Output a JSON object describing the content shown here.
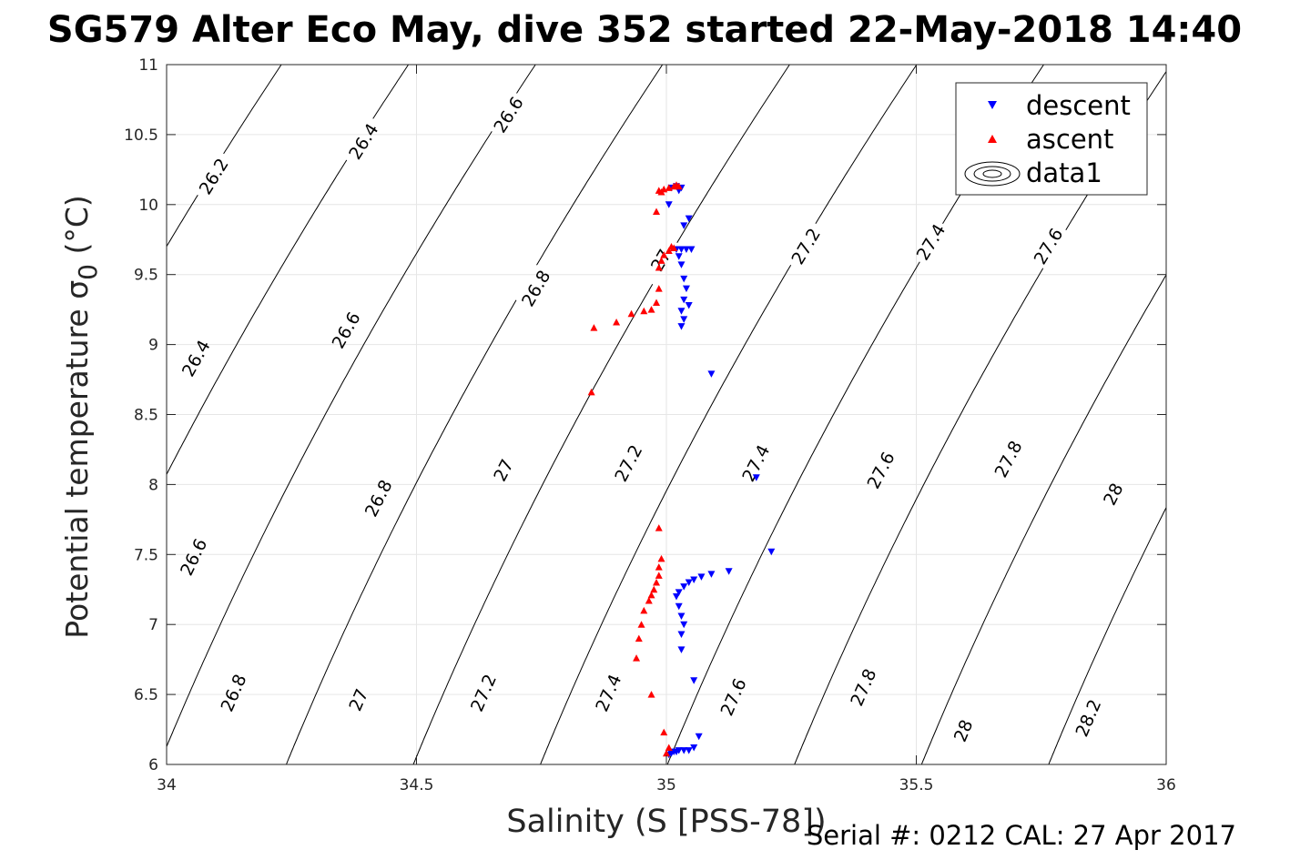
{
  "chart_data": {
    "type": "scatter",
    "title": "SG579 Alter Eco May, dive 352 started 22-May-2018 14:40",
    "xlabel": "Salinity (S [PSS-78])",
    "ylabel": "Potential temperature σ₀ (°C)",
    "ylabel_main": "Potential temperature σ",
    "ylabel_sub": "0",
    "ylabel_unit": " (°C)",
    "footer": "Serial #: 0212  CAL: 27 Apr 2017",
    "xlim": [
      34,
      36
    ],
    "ylim": [
      6,
      11
    ],
    "x_ticks": [
      34,
      34.5,
      35,
      35.5,
      36
    ],
    "x_tick_labels": [
      "34",
      "34.5",
      "35",
      "35.5",
      "36"
    ],
    "y_ticks": [
      6,
      6.5,
      7,
      7.5,
      8,
      8.5,
      9,
      9.5,
      10,
      10.5,
      11
    ],
    "y_tick_labels": [
      "6",
      "6.5",
      "7",
      "7.5",
      "8",
      "8.5",
      "9",
      "9.5",
      "10",
      "10.5",
      "11"
    ],
    "grid": true,
    "legend_position": "top-right",
    "series": [
      {
        "name": "descent",
        "marker": "triangle-down",
        "color": "#0000ff",
        "points": [
          [
            35.01,
            10.12
          ],
          [
            35.02,
            10.13
          ],
          [
            35.025,
            10.1
          ],
          [
            35.03,
            10.12
          ],
          [
            35.005,
            10.0
          ],
          [
            35.035,
            9.85
          ],
          [
            35.045,
            9.9
          ],
          [
            35.02,
            9.68
          ],
          [
            35.03,
            9.68
          ],
          [
            35.04,
            9.68
          ],
          [
            35.05,
            9.68
          ],
          [
            35.025,
            9.63
          ],
          [
            35.03,
            9.57
          ],
          [
            35.035,
            9.47
          ],
          [
            35.04,
            9.4
          ],
          [
            35.035,
            9.32
          ],
          [
            35.045,
            9.28
          ],
          [
            35.03,
            9.24
          ],
          [
            35.035,
            9.18
          ],
          [
            35.03,
            9.13
          ],
          [
            35.09,
            8.79
          ],
          [
            35.18,
            8.05
          ],
          [
            35.21,
            7.52
          ],
          [
            35.125,
            7.38
          ],
          [
            35.09,
            7.36
          ],
          [
            35.07,
            7.34
          ],
          [
            35.055,
            7.32
          ],
          [
            35.045,
            7.3
          ],
          [
            35.035,
            7.27
          ],
          [
            35.025,
            7.23
          ],
          [
            35.02,
            7.2
          ],
          [
            35.025,
            7.13
          ],
          [
            35.03,
            7.06
          ],
          [
            35.035,
            7.0
          ],
          [
            35.03,
            6.93
          ],
          [
            35.03,
            6.82
          ],
          [
            35.055,
            6.6
          ],
          [
            35.065,
            6.2
          ],
          [
            35.055,
            6.12
          ],
          [
            35.025,
            6.1
          ],
          [
            35.035,
            6.1
          ],
          [
            35.045,
            6.1
          ],
          [
            35.015,
            6.09
          ],
          [
            35.02,
            6.09
          ],
          [
            35.01,
            6.08
          ],
          [
            35.005,
            6.07
          ]
        ]
      },
      {
        "name": "ascent",
        "marker": "triangle-up",
        "color": "#ff0000",
        "points": [
          [
            34.985,
            10.1
          ],
          [
            34.995,
            10.11
          ],
          [
            35.005,
            10.12
          ],
          [
            35.015,
            10.13
          ],
          [
            35.02,
            10.14
          ],
          [
            35.025,
            10.13
          ],
          [
            34.99,
            10.09
          ],
          [
            34.98,
            9.95
          ],
          [
            35.01,
            9.7
          ],
          [
            35.015,
            9.69
          ],
          [
            35.005,
            9.67
          ],
          [
            34.995,
            9.64
          ],
          [
            34.99,
            9.6
          ],
          [
            34.985,
            9.55
          ],
          [
            34.985,
            9.4
          ],
          [
            34.98,
            9.3
          ],
          [
            34.97,
            9.25
          ],
          [
            34.955,
            9.24
          ],
          [
            34.93,
            9.22
          ],
          [
            34.9,
            9.16
          ],
          [
            34.855,
            9.12
          ],
          [
            34.85,
            8.66
          ],
          [
            34.985,
            7.69
          ],
          [
            34.99,
            7.47
          ],
          [
            34.985,
            7.41
          ],
          [
            34.985,
            7.35
          ],
          [
            34.98,
            7.3
          ],
          [
            34.975,
            7.25
          ],
          [
            34.97,
            7.21
          ],
          [
            34.965,
            7.17
          ],
          [
            34.955,
            7.1
          ],
          [
            34.95,
            7.0
          ],
          [
            34.945,
            6.9
          ],
          [
            34.94,
            6.76
          ],
          [
            34.97,
            6.5
          ],
          [
            34.995,
            6.23
          ],
          [
            35.005,
            6.12
          ],
          [
            35.0,
            6.08
          ]
        ]
      },
      {
        "name": "data1",
        "marker": "contour",
        "color": "#000000",
        "contour_levels": [
          26.2,
          26.4,
          26.6,
          26.8,
          27,
          27.2,
          27.4,
          27.6,
          27.8,
          28,
          28.2
        ],
        "contour_labels": [
          {
            "text": "26.2",
            "x": 34.095,
            "y": 10.2
          },
          {
            "text": "26.4",
            "x": 34.395,
            "y": 10.45
          },
          {
            "text": "26.6",
            "x": 34.685,
            "y": 10.64
          },
          {
            "text": "26.4",
            "x": 34.06,
            "y": 8.9
          },
          {
            "text": "26.6",
            "x": 34.36,
            "y": 9.1
          },
          {
            "text": "26.8",
            "x": 34.74,
            "y": 9.4
          },
          {
            "text": "27",
            "x": 34.99,
            "y": 9.6
          },
          {
            "text": "27.2",
            "x": 35.28,
            "y": 9.7
          },
          {
            "text": "27.4",
            "x": 35.53,
            "y": 9.73
          },
          {
            "text": "27.6",
            "x": 35.765,
            "y": 9.7
          },
          {
            "text": "26.6",
            "x": 34.055,
            "y": 7.48
          },
          {
            "text": "26.8",
            "x": 34.425,
            "y": 7.9
          },
          {
            "text": "27",
            "x": 34.675,
            "y": 8.1
          },
          {
            "text": "27.2",
            "x": 34.925,
            "y": 8.15
          },
          {
            "text": "27.4",
            "x": 35.18,
            "y": 8.15
          },
          {
            "text": "27.6",
            "x": 35.43,
            "y": 8.1
          },
          {
            "text": "27.8",
            "x": 35.685,
            "y": 8.18
          },
          {
            "text": "28",
            "x": 35.895,
            "y": 7.93
          },
          {
            "text": "26.8",
            "x": 34.135,
            "y": 6.51
          },
          {
            "text": "27",
            "x": 34.385,
            "y": 6.46
          },
          {
            "text": "27.2",
            "x": 34.635,
            "y": 6.51
          },
          {
            "text": "27.4",
            "x": 34.885,
            "y": 6.51
          },
          {
            "text": "27.6",
            "x": 35.135,
            "y": 6.48
          },
          {
            "text": "27.8",
            "x": 35.395,
            "y": 6.55
          },
          {
            "text": "28",
            "x": 35.595,
            "y": 6.24
          },
          {
            "text": "28.2",
            "x": 35.845,
            "y": 6.33
          }
        ]
      }
    ]
  }
}
